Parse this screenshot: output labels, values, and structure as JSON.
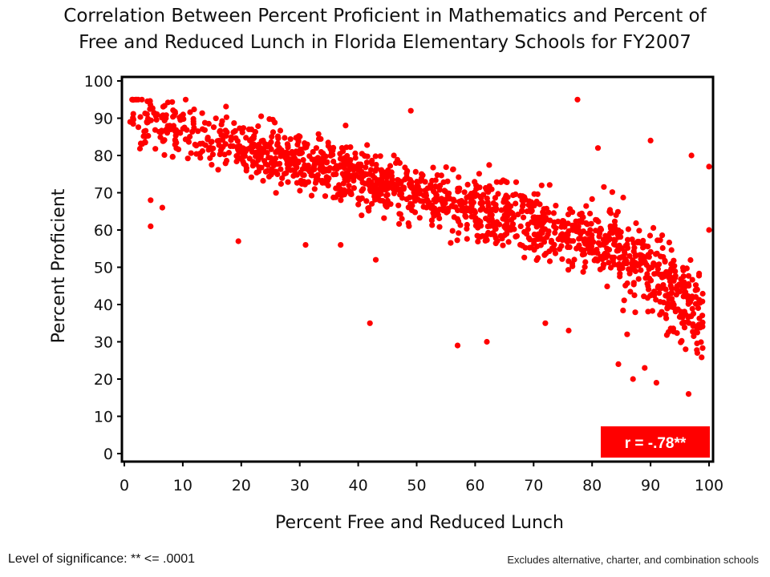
{
  "chart_data": {
    "type": "scatter",
    "title_line1": "Correlation Between Percent Proficient in Mathematics and Percent of",
    "title_line2": "Free and Reduced Lunch in Florida Elementary Schools for FY2007",
    "xlabel": "Percent Free and Reduced Lunch",
    "ylabel": "Percent Proficient",
    "xlim": [
      0,
      100
    ],
    "ylim": [
      0,
      100
    ],
    "x_ticks": [
      0,
      10,
      20,
      30,
      40,
      50,
      60,
      70,
      80,
      90,
      100
    ],
    "y_ticks": [
      0,
      10,
      20,
      30,
      40,
      50,
      60,
      70,
      80,
      90,
      100
    ],
    "point_color": "#ff0000",
    "point_count": 1500,
    "trend": {
      "x0": 0,
      "y0": 91,
      "slope": -0.42
    },
    "outliers": [
      {
        "x": 77.5,
        "y": 95
      },
      {
        "x": 42,
        "y": 35
      },
      {
        "x": 57,
        "y": 29
      },
      {
        "x": 62,
        "y": 30
      },
      {
        "x": 19.5,
        "y": 57
      },
      {
        "x": 96.5,
        "y": 16
      },
      {
        "x": 91,
        "y": 19
      },
      {
        "x": 100,
        "y": 77
      },
      {
        "x": 100,
        "y": 60
      },
      {
        "x": 4.5,
        "y": 61
      },
      {
        "x": 4.5,
        "y": 68
      },
      {
        "x": 6.5,
        "y": 66
      },
      {
        "x": 90,
        "y": 84
      },
      {
        "x": 81,
        "y": 82
      },
      {
        "x": 49,
        "y": 92
      },
      {
        "x": 1,
        "y": 89
      },
      {
        "x": 10.5,
        "y": 95
      },
      {
        "x": 3,
        "y": 95
      },
      {
        "x": 84.5,
        "y": 24
      },
      {
        "x": 87,
        "y": 20
      },
      {
        "x": 89,
        "y": 23
      },
      {
        "x": 96,
        "y": 28
      },
      {
        "x": 98,
        "y": 27
      },
      {
        "x": 97,
        "y": 80
      },
      {
        "x": 31,
        "y": 56
      },
      {
        "x": 37,
        "y": 56
      },
      {
        "x": 43,
        "y": 52
      },
      {
        "x": 72,
        "y": 35
      },
      {
        "x": 76,
        "y": 33
      },
      {
        "x": 86,
        "y": 32
      }
    ],
    "correlation_label": "r = -.78**",
    "correlation_box_color": "#ff0000"
  },
  "footer": {
    "significance": "Level of significance: ** <= .0001",
    "note": "Excludes alternative, charter, and combination schools"
  }
}
